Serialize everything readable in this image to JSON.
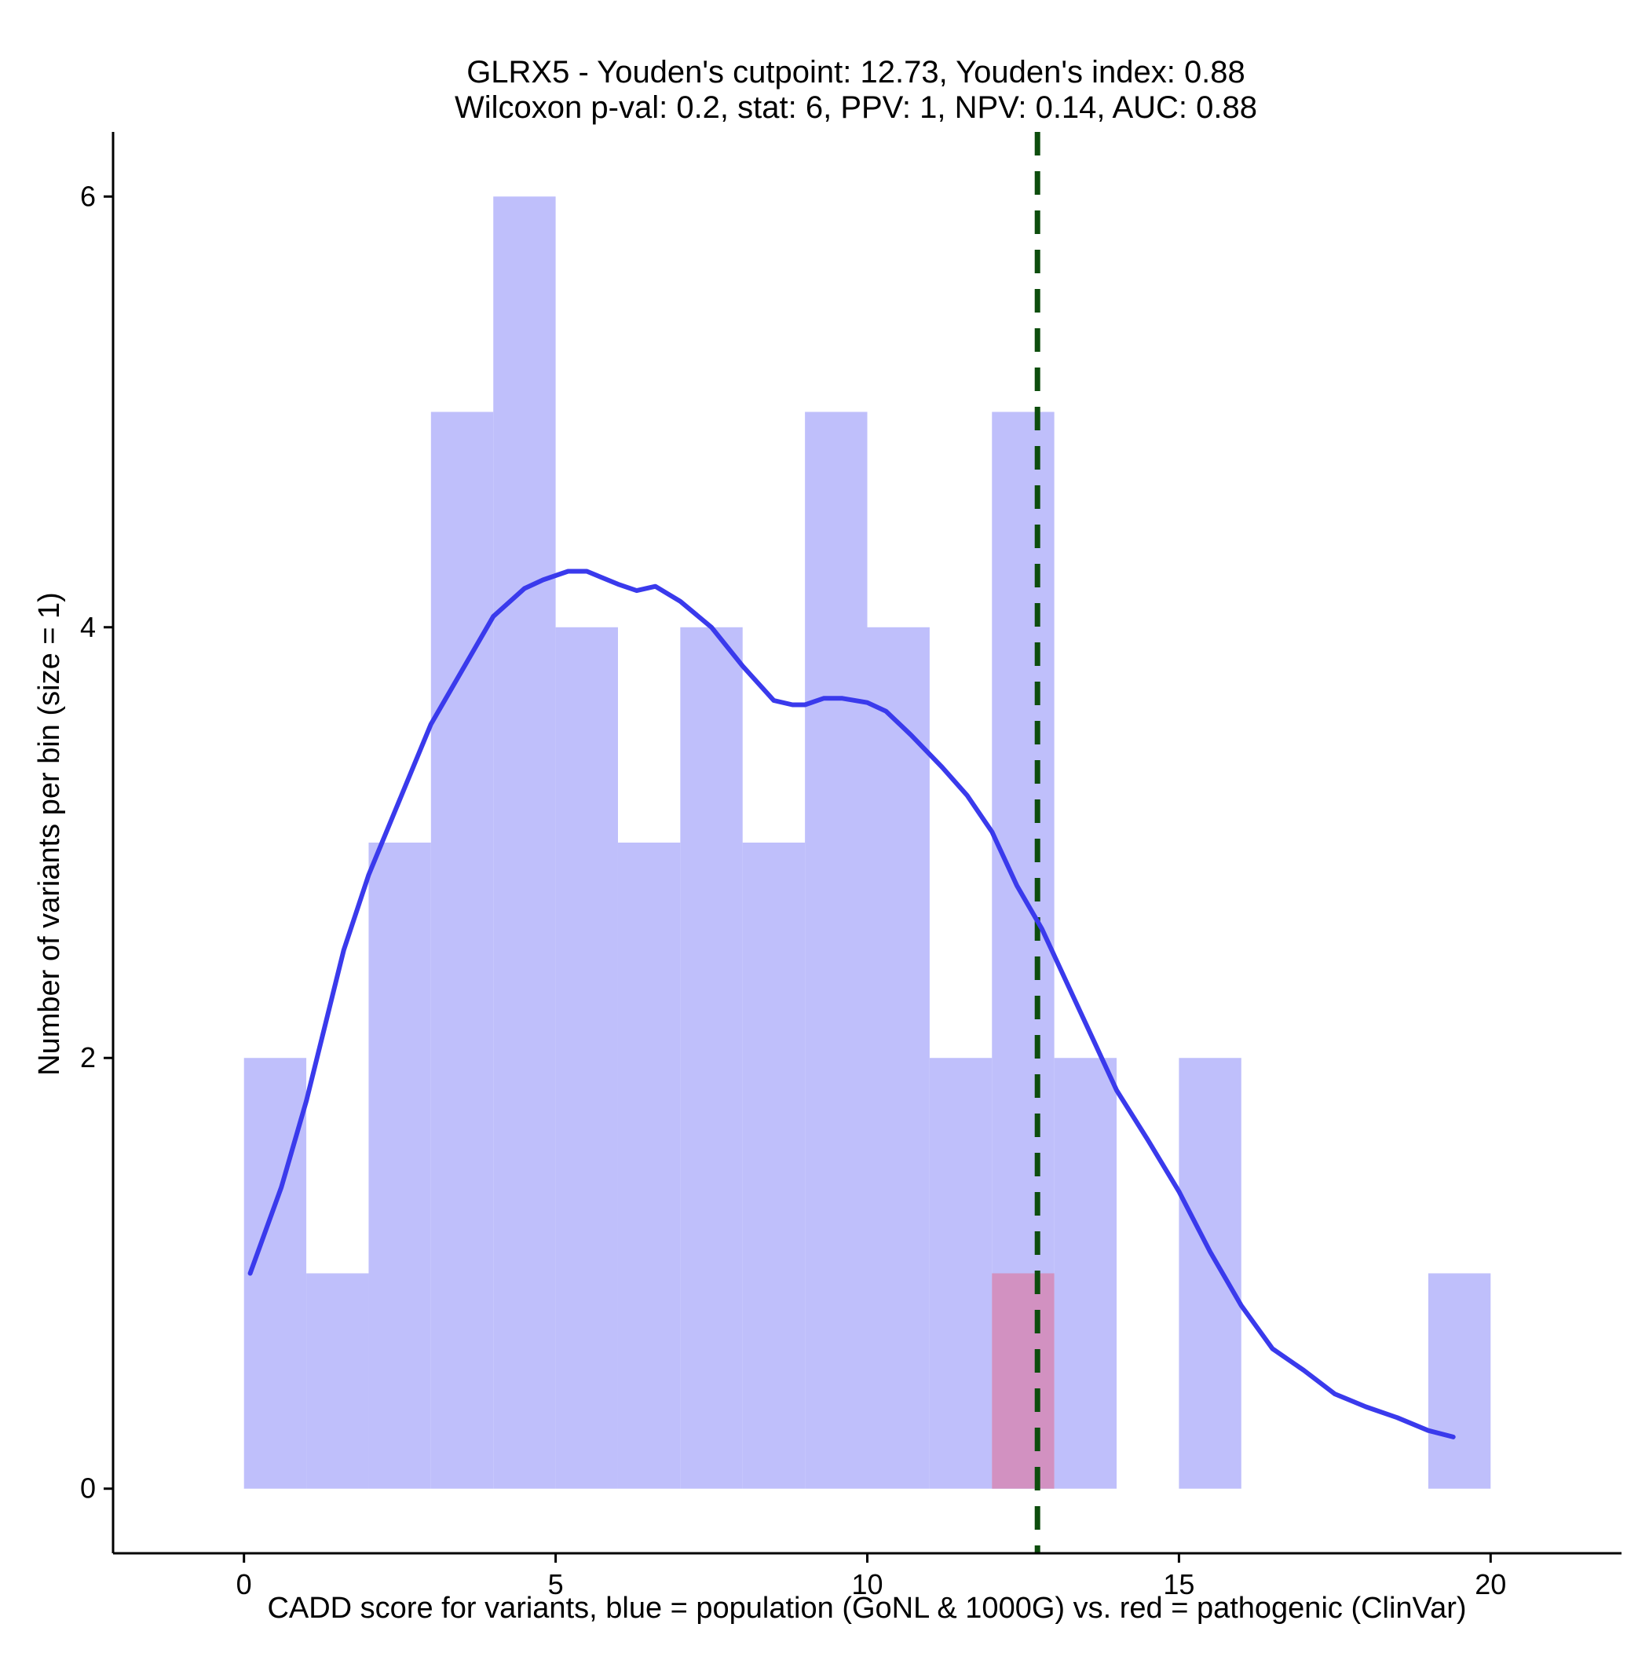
{
  "chart_data": {
    "type": "bar",
    "title": [
      "GLRX5 - Youden's cutpoint: 12.73, Youden's index: 0.88",
      "Wilcoxon p-val: 0.2, stat: 6, PPV: 1, NPV: 0.14, AUC: 0.88"
    ],
    "xlabel": "CADD score for variants, blue = population (GoNL & 1000G) vs. red = pathogenic (ClinVar)",
    "ylabel": "Number of variants per bin (size = 1)",
    "xlim": [
      -2.1,
      22.1
    ],
    "ylim": [
      -0.3,
      6.3
    ],
    "x_ticks": [
      0,
      5,
      10,
      15,
      20
    ],
    "y_ticks": [
      0,
      2,
      4,
      6
    ],
    "bin_width": 1,
    "series": [
      {
        "name": "population",
        "color": "#bfbffb",
        "bins": [
          {
            "x0": 0,
            "x1": 1,
            "count": 2
          },
          {
            "x0": 1,
            "x1": 2,
            "count": 1
          },
          {
            "x0": 2,
            "x1": 3,
            "count": 3
          },
          {
            "x0": 3,
            "x1": 4,
            "count": 5
          },
          {
            "x0": 4,
            "x1": 5,
            "count": 6
          },
          {
            "x0": 5,
            "x1": 6,
            "count": 4
          },
          {
            "x0": 6,
            "x1": 7,
            "count": 3
          },
          {
            "x0": 7,
            "x1": 8,
            "count": 4
          },
          {
            "x0": 8,
            "x1": 9,
            "count": 3
          },
          {
            "x0": 9,
            "x1": 10,
            "count": 5
          },
          {
            "x0": 10,
            "x1": 11,
            "count": 4
          },
          {
            "x0": 11,
            "x1": 12,
            "count": 2
          },
          {
            "x0": 12,
            "x1": 13,
            "count": 5
          },
          {
            "x0": 13,
            "x1": 14,
            "count": 2
          },
          {
            "x0": 15,
            "x1": 16,
            "count": 2
          },
          {
            "x0": 19,
            "x1": 20,
            "count": 1
          }
        ]
      },
      {
        "name": "pathogenic",
        "color": "#d291c1",
        "bins": [
          {
            "x0": 12,
            "x1": 13,
            "count": 1
          }
        ]
      }
    ],
    "density_curve": {
      "color": "#3a3aec",
      "points": [
        [
          0.1,
          1.0
        ],
        [
          0.6,
          1.4
        ],
        [
          1.0,
          1.8
        ],
        [
          1.3,
          2.15
        ],
        [
          1.6,
          2.5
        ],
        [
          2.0,
          2.85
        ],
        [
          2.5,
          3.2
        ],
        [
          3.0,
          3.55
        ],
        [
          3.5,
          3.8
        ],
        [
          4.0,
          4.05
        ],
        [
          4.5,
          4.18
        ],
        [
          4.8,
          4.22
        ],
        [
          5.2,
          4.26
        ],
        [
          5.5,
          4.26
        ],
        [
          6.0,
          4.2
        ],
        [
          6.3,
          4.17
        ],
        [
          6.6,
          4.19
        ],
        [
          7.0,
          4.12
        ],
        [
          7.5,
          4.0
        ],
        [
          8.0,
          3.82
        ],
        [
          8.5,
          3.66
        ],
        [
          8.8,
          3.64
        ],
        [
          9.0,
          3.64
        ],
        [
          9.3,
          3.67
        ],
        [
          9.6,
          3.67
        ],
        [
          10.0,
          3.65
        ],
        [
          10.3,
          3.61
        ],
        [
          10.7,
          3.5
        ],
        [
          11.2,
          3.35
        ],
        [
          11.6,
          3.22
        ],
        [
          12.0,
          3.05
        ],
        [
          12.4,
          2.8
        ],
        [
          12.8,
          2.6
        ],
        [
          13.2,
          2.35
        ],
        [
          13.6,
          2.1
        ],
        [
          14.0,
          1.85
        ],
        [
          14.5,
          1.62
        ],
        [
          15.0,
          1.38
        ],
        [
          15.5,
          1.1
        ],
        [
          16.0,
          0.85
        ],
        [
          16.5,
          0.65
        ],
        [
          17.0,
          0.55
        ],
        [
          17.5,
          0.44
        ],
        [
          18.0,
          0.38
        ],
        [
          18.5,
          0.33
        ],
        [
          19.0,
          0.27
        ],
        [
          19.4,
          0.24
        ]
      ]
    },
    "cutpoint": {
      "x": 12.73,
      "color": "#0d4d0d",
      "style": "dashed"
    },
    "grid": false,
    "legend": "none"
  }
}
